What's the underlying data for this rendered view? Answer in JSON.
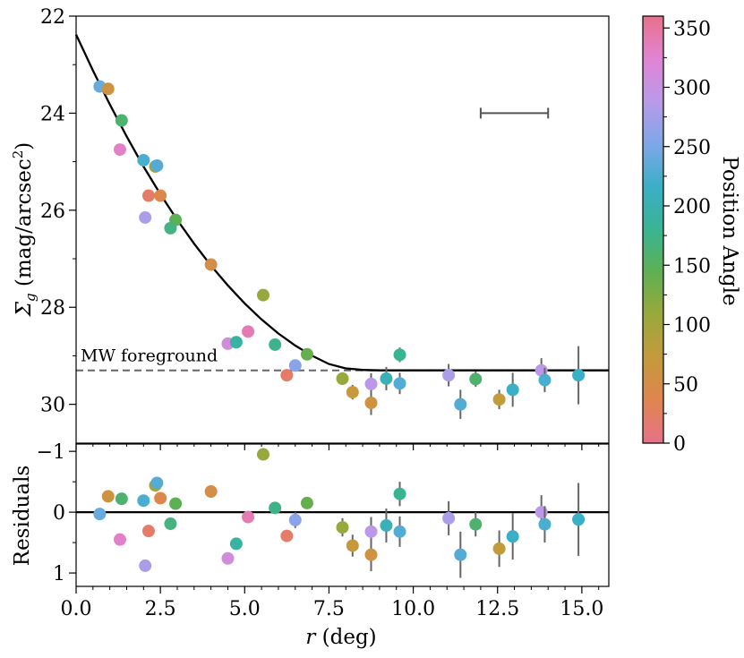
{
  "chart_data": {
    "type": "scatter",
    "top_panel": {
      "ylabel": "Σ_g (mag/arcsec²)",
      "ylim": [
        22,
        30.8
      ],
      "yticks": [
        22,
        24,
        26,
        28,
        30
      ],
      "yticks_labels": [
        "22",
        "24",
        "26",
        "28",
        "30"
      ],
      "foreground_level": 29.3,
      "foreground_label": "MW foreground",
      "scale_bar": {
        "x_start": 12.0,
        "x_end": 14.0,
        "y": 24.0
      },
      "model_curve": [
        [
          0.0,
          22.38
        ],
        [
          0.5,
          23.12
        ],
        [
          1.0,
          23.82
        ],
        [
          1.5,
          24.48
        ],
        [
          2.0,
          25.1
        ],
        [
          2.5,
          25.67
        ],
        [
          3.0,
          26.2
        ],
        [
          3.5,
          26.69
        ],
        [
          4.0,
          27.14
        ],
        [
          4.5,
          27.55
        ],
        [
          5.0,
          27.92
        ],
        [
          5.5,
          28.25
        ],
        [
          6.0,
          28.54
        ],
        [
          6.5,
          28.79
        ],
        [
          7.0,
          29.0
        ],
        [
          7.5,
          29.17
        ],
        [
          8.0,
          29.26
        ],
        [
          8.5,
          29.29
        ],
        [
          9.0,
          29.3
        ],
        [
          10.0,
          29.3
        ],
        [
          12.0,
          29.3
        ],
        [
          14.0,
          29.3
        ],
        [
          15.8,
          29.3
        ]
      ],
      "points": [
        {
          "r": 0.7,
          "sigma": 23.45,
          "err": 0,
          "pa": 240
        },
        {
          "r": 0.95,
          "sigma": 23.5,
          "err": 0,
          "pa": 60
        },
        {
          "r": 1.35,
          "sigma": 24.15,
          "err": 0,
          "pa": 160
        },
        {
          "r": 1.3,
          "sigma": 24.75,
          "err": 0,
          "pa": 330
        },
        {
          "r": 2.0,
          "sigma": 24.97,
          "err": 0,
          "pa": 225
        },
        {
          "r": 2.35,
          "sigma": 25.1,
          "err": 0,
          "pa": 100
        },
        {
          "r": 2.4,
          "sigma": 25.08,
          "err": 0,
          "pa": 230
        },
        {
          "r": 2.15,
          "sigma": 25.7,
          "err": 0,
          "pa": 20
        },
        {
          "r": 2.5,
          "sigma": 25.7,
          "err": 0,
          "pa": 40
        },
        {
          "r": 2.05,
          "sigma": 26.15,
          "err": 0,
          "pa": 280
        },
        {
          "r": 2.95,
          "sigma": 26.2,
          "err": 0,
          "pa": 145
        },
        {
          "r": 2.8,
          "sigma": 26.37,
          "err": 0,
          "pa": 170
        },
        {
          "r": 4.0,
          "sigma": 27.12,
          "err": 0,
          "pa": 50
        },
        {
          "r": 5.55,
          "sigma": 27.75,
          "err": 0,
          "pa": 110
        },
        {
          "r": 5.1,
          "sigma": 28.5,
          "err": 0,
          "pa": 340
        },
        {
          "r": 4.5,
          "sigma": 28.75,
          "err": 0,
          "pa": 310
        },
        {
          "r": 4.75,
          "sigma": 28.72,
          "err": 0,
          "pa": 190
        },
        {
          "r": 5.9,
          "sigma": 28.77,
          "err": 0,
          "pa": 175
        },
        {
          "r": 6.85,
          "sigma": 28.97,
          "err": 0,
          "pa": 140
        },
        {
          "r": 6.5,
          "sigma": 29.2,
          "err": 0,
          "pa": 260
        },
        {
          "r": 6.25,
          "sigma": 29.4,
          "err": 0,
          "pa": 20
        },
        {
          "r": 7.9,
          "sigma": 29.47,
          "err": 0.13,
          "pa": 110
        },
        {
          "r": 8.2,
          "sigma": 29.75,
          "err": 0.15,
          "pa": 70
        },
        {
          "r": 8.75,
          "sigma": 29.58,
          "err": 0.22,
          "pa": 290
        },
        {
          "r": 8.75,
          "sigma": 29.97,
          "err": 0.25,
          "pa": 60
        },
        {
          "r": 9.2,
          "sigma": 29.47,
          "err": 0.24,
          "pa": 205
        },
        {
          "r": 9.6,
          "sigma": 29.57,
          "err": 0.22,
          "pa": 230
        },
        {
          "r": 9.6,
          "sigma": 28.98,
          "err": 0.15,
          "pa": 180
        },
        {
          "r": 11.05,
          "sigma": 29.4,
          "err": 0.23,
          "pa": 280
        },
        {
          "r": 11.4,
          "sigma": 30.0,
          "err": 0.3,
          "pa": 230
        },
        {
          "r": 11.85,
          "sigma": 29.48,
          "err": 0.16,
          "pa": 160
        },
        {
          "r": 12.55,
          "sigma": 29.9,
          "err": 0.2,
          "pa": 75
        },
        {
          "r": 12.95,
          "sigma": 29.7,
          "err": 0.35,
          "pa": 215
        },
        {
          "r": 13.8,
          "sigma": 29.3,
          "err": 0.25,
          "pa": 290
        },
        {
          "r": 13.9,
          "sigma": 29.5,
          "err": 0.25,
          "pa": 225
        },
        {
          "r": 14.9,
          "sigma": 29.4,
          "err": 0.6,
          "pa": 215
        }
      ]
    },
    "bottom_panel": {
      "ylabel": "Residuals",
      "ylim": [
        -1.12,
        1.22
      ],
      "yticks": [
        -1,
        0,
        1
      ],
      "yticks_labels": [
        "−1",
        "0",
        "1"
      ],
      "zero_line": 0,
      "points": [
        {
          "r": 0.7,
          "res": 0.03,
          "err": 0,
          "pa": 240
        },
        {
          "r": 0.95,
          "res": -0.26,
          "err": 0,
          "pa": 60
        },
        {
          "r": 1.35,
          "res": -0.22,
          "err": 0,
          "pa": 160
        },
        {
          "r": 1.3,
          "res": 0.45,
          "err": 0,
          "pa": 330
        },
        {
          "r": 2.0,
          "res": -0.19,
          "err": 0,
          "pa": 225
        },
        {
          "r": 2.35,
          "res": -0.44,
          "err": 0,
          "pa": 100
        },
        {
          "r": 2.4,
          "res": -0.48,
          "err": 0,
          "pa": 230
        },
        {
          "r": 2.15,
          "res": 0.31,
          "err": 0,
          "pa": 20
        },
        {
          "r": 2.5,
          "res": -0.23,
          "err": 0,
          "pa": 40
        },
        {
          "r": 2.05,
          "res": 0.88,
          "err": 0,
          "pa": 280
        },
        {
          "r": 2.95,
          "res": -0.14,
          "err": 0,
          "pa": 145
        },
        {
          "r": 2.8,
          "res": 0.19,
          "err": 0,
          "pa": 170
        },
        {
          "r": 4.0,
          "res": -0.34,
          "err": 0,
          "pa": 50
        },
        {
          "r": 5.55,
          "res": -0.95,
          "err": 0,
          "pa": 110
        },
        {
          "r": 5.1,
          "res": 0.08,
          "err": 0,
          "pa": 340
        },
        {
          "r": 4.5,
          "res": 0.76,
          "err": 0,
          "pa": 310
        },
        {
          "r": 4.75,
          "res": 0.52,
          "err": 0,
          "pa": 190
        },
        {
          "r": 5.9,
          "res": -0.07,
          "err": 0,
          "pa": 175
        },
        {
          "r": 6.85,
          "res": -0.15,
          "err": 0,
          "pa": 140
        },
        {
          "r": 6.5,
          "res": 0.13,
          "err": 0.13,
          "pa": 260
        },
        {
          "r": 6.25,
          "res": 0.39,
          "err": 0,
          "pa": 20
        },
        {
          "r": 7.9,
          "res": 0.25,
          "err": 0.15,
          "pa": 110
        },
        {
          "r": 8.2,
          "res": 0.55,
          "err": 0.18,
          "pa": 70
        },
        {
          "r": 8.75,
          "res": 0.32,
          "err": 0.24,
          "pa": 290
        },
        {
          "r": 8.75,
          "res": 0.7,
          "err": 0.27,
          "pa": 60
        },
        {
          "r": 9.2,
          "res": 0.22,
          "err": 0.28,
          "pa": 205
        },
        {
          "r": 9.6,
          "res": 0.32,
          "err": 0.25,
          "pa": 230
        },
        {
          "r": 9.6,
          "res": -0.3,
          "err": 0.2,
          "pa": 180
        },
        {
          "r": 11.05,
          "res": 0.1,
          "err": 0.28,
          "pa": 280
        },
        {
          "r": 11.4,
          "res": 0.7,
          "err": 0.38,
          "pa": 230
        },
        {
          "r": 11.85,
          "res": 0.2,
          "err": 0.2,
          "pa": 160
        },
        {
          "r": 12.55,
          "res": 0.6,
          "err": 0.3,
          "pa": 75
        },
        {
          "r": 12.95,
          "res": 0.4,
          "err": 0.38,
          "pa": 215
        },
        {
          "r": 13.8,
          "res": 0.0,
          "err": 0.28,
          "pa": 290
        },
        {
          "r": 13.9,
          "res": 0.2,
          "err": 0.3,
          "pa": 225
        },
        {
          "r": 14.9,
          "res": 0.12,
          "err": 0.6,
          "pa": 215
        }
      ]
    },
    "xlabel_var": "r",
    "xlabel_unit": "(deg)",
    "xlim": [
      0,
      15.8
    ],
    "xticks": [
      0.0,
      2.5,
      5.0,
      7.5,
      10.0,
      12.5,
      15.0
    ],
    "xticks_labels": [
      "0.0",
      "2.5",
      "5.0",
      "7.5",
      "10.0",
      "12.5",
      "15.0"
    ],
    "colorbar": {
      "label": "Position Angle",
      "range": [
        0,
        360
      ],
      "ticks": [
        0,
        50,
        100,
        150,
        200,
        250,
        300,
        350
      ],
      "ticks_labels": [
        "0",
        "50",
        "100",
        "150",
        "200",
        "250",
        "300",
        "350"
      ],
      "colormap": [
        "#e7718a",
        "#e0854f",
        "#c59a3c",
        "#9aa83b",
        "#5fb052",
        "#39b493",
        "#3aafc6",
        "#7ea7e9",
        "#b99ae9",
        "#e184d4",
        "#e7718a"
      ]
    }
  }
}
